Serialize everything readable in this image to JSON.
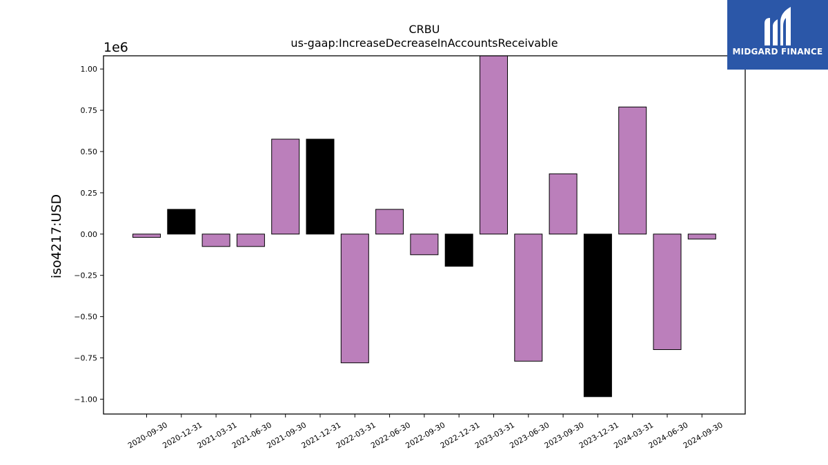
{
  "brand": {
    "name": "MIDGARD FINANCE",
    "background": "#2b57a8"
  },
  "chart_data": {
    "type": "bar",
    "title": "CRBU",
    "subtitle": "us-gaap:IncreaseDecreaseInAccountsReceivable",
    "ylabel": "iso4217:USD",
    "xlabel": "",
    "scale_label": "1e6",
    "ylim": [
      -1.09,
      1.08
    ],
    "yticks": [
      -1.0,
      -0.75,
      -0.5,
      -0.25,
      0.0,
      0.25,
      0.5,
      0.75,
      1.0
    ],
    "ytick_labels": [
      "−1.00",
      "−0.75",
      "−0.50",
      "−0.25",
      "0.00",
      "0.25",
      "0.50",
      "0.75",
      "1.00"
    ],
    "grid": false,
    "categories": [
      "2020-09-30",
      "2020-12-31",
      "2021-03-31",
      "2021-06-30",
      "2021-09-30",
      "2021-12-31",
      "2022-03-31",
      "2022-06-30",
      "2022-09-30",
      "2022-12-31",
      "2023-03-31",
      "2023-06-30",
      "2023-09-30",
      "2023-12-31",
      "2024-03-31",
      "2024-06-30",
      "2024-09-30"
    ],
    "values": [
      -0.02,
      0.15,
      -0.075,
      -0.075,
      0.575,
      0.575,
      -0.78,
      0.15,
      -0.125,
      -0.195,
      1.08,
      -0.77,
      0.365,
      -0.985,
      0.77,
      -0.7,
      -0.03
    ],
    "bar_colors": [
      "#bb7fbb",
      "#000000",
      "#bb7fbb",
      "#bb7fbb",
      "#bb7fbb",
      "#000000",
      "#bb7fbb",
      "#bb7fbb",
      "#bb7fbb",
      "#000000",
      "#bb7fbb",
      "#bb7fbb",
      "#bb7fbb",
      "#000000",
      "#bb7fbb",
      "#bb7fbb",
      "#bb7fbb"
    ]
  }
}
